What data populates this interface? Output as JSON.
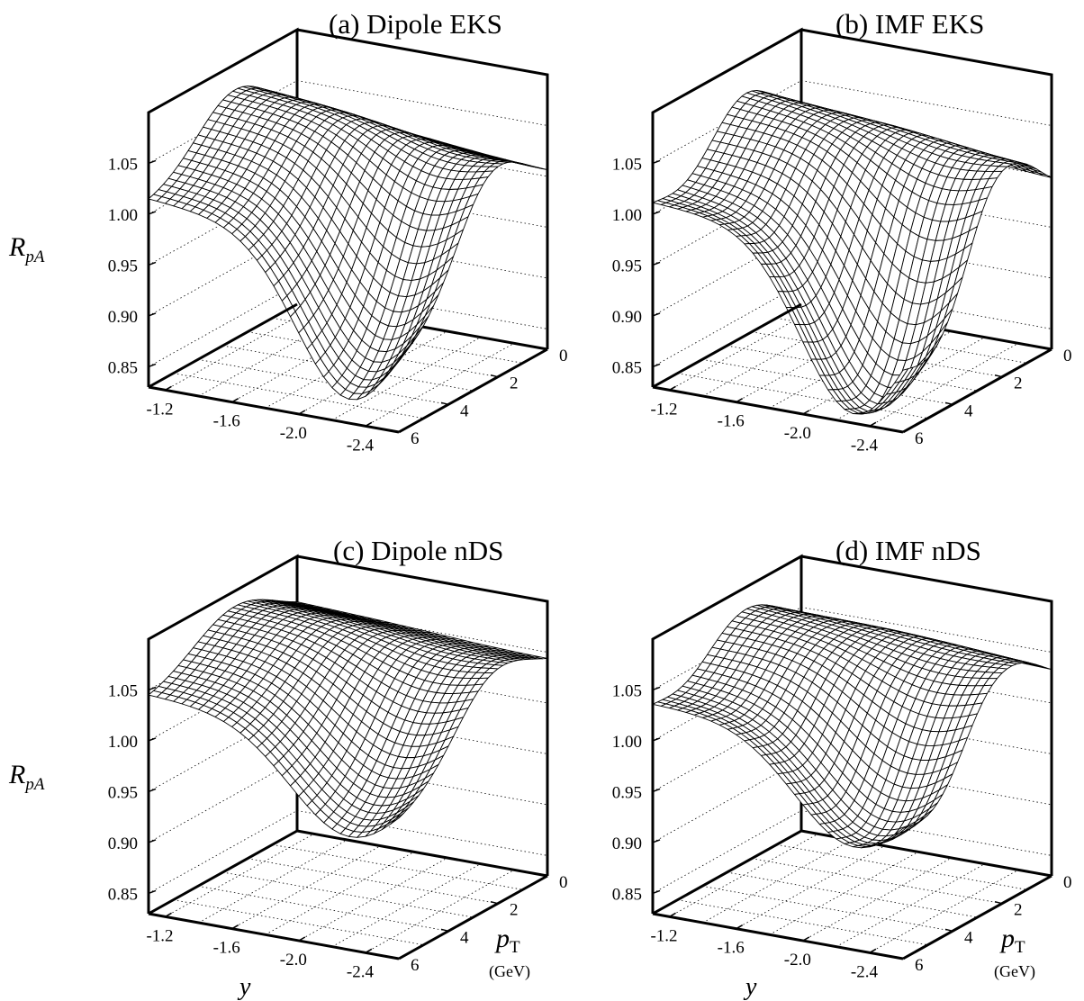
{
  "figure": {
    "zlabel_main": "R",
    "zlabel_sub": "pA",
    "xlabel": "y",
    "ylabel_main": "p",
    "ylabel_sub": "T",
    "ylabel_unit": "(GeV)"
  },
  "chart_data": [
    {
      "type": "surface",
      "title": "(a) Dipole EKS",
      "x_ticks": [
        "-1.2",
        "-1.6",
        "-2.0",
        "-2.4"
      ],
      "y_ticks": [
        "0",
        "2",
        "4",
        "6"
      ],
      "z_ticks": [
        "0.85",
        "0.90",
        "0.95",
        "1.00",
        "1.05"
      ],
      "xlim": [
        -1.1,
        -2.6
      ],
      "ylim": [
        0,
        6
      ],
      "zlim": [
        0.83,
        1.1
      ],
      "surface": {
        "base": 1.01,
        "x_slope": 0.04,
        "peak": 0.065,
        "peak_pt": 2.5,
        "peak_width": 2.2,
        "drop": 0.15,
        "drop_x_center": -2.3,
        "drop_x_width": 0.45,
        "drop_pt_center": 5.5,
        "drop_pt_width": 2.2,
        "ripple": 0
      },
      "corner_values": {
        "y_-1.2_pT_0": 1.02,
        "y_-2.5_pT_6": 0.85
      }
    },
    {
      "type": "surface",
      "title": "(b) IMF EKS",
      "x_ticks": [
        "-1.2",
        "-1.6",
        "-2.0",
        "-2.4"
      ],
      "y_ticks": [
        "0",
        "2",
        "4",
        "6"
      ],
      "z_ticks": [
        "0.85",
        "0.90",
        "0.95",
        "1.00",
        "1.05"
      ],
      "xlim": [
        -1.1,
        -2.6
      ],
      "ylim": [
        0,
        6
      ],
      "zlim": [
        0.83,
        1.1
      ],
      "surface": {
        "base": 1.01,
        "x_slope": 0.04,
        "peak": 0.06,
        "peak_pt": 2.2,
        "peak_width": 1.6,
        "drop": 0.16,
        "drop_x_center": -2.3,
        "drop_x_width": 0.45,
        "drop_pt_center": 5.3,
        "drop_pt_width": 1.6,
        "ripple": 0.008
      },
      "corner_values": {
        "y_-1.2_pT_0": 1.02,
        "y_-2.5_pT_6": 0.86
      }
    },
    {
      "type": "surface",
      "title": "(c) Dipole nDS",
      "x_ticks": [
        "-1.2",
        "-1.6",
        "-2.0",
        "-2.4"
      ],
      "y_ticks": [
        "0",
        "2",
        "4",
        "6"
      ],
      "z_ticks": [
        "0.85",
        "0.90",
        "0.95",
        "1.00",
        "1.05"
      ],
      "xlim": [
        -1.1,
        -2.6
      ],
      "ylim": [
        0,
        6
      ],
      "zlim": [
        0.83,
        1.1
      ],
      "surface": {
        "base": 1.04,
        "x_slope": 0.02,
        "peak": 0.045,
        "peak_pt": 2.5,
        "peak_width": 2.4,
        "drop": 0.1,
        "drop_x_center": -2.3,
        "drop_x_width": 0.5,
        "drop_pt_center": 5.5,
        "drop_pt_width": 2.4,
        "ripple": 0
      },
      "corner_values": {
        "y_-1.2_pT_0": 1.05,
        "y_-2.5_pT_6": 0.91
      }
    },
    {
      "type": "surface",
      "title": "(d) IMF nDS",
      "x_ticks": [
        "-1.2",
        "-1.6",
        "-2.0",
        "-2.4"
      ],
      "y_ticks": [
        "0",
        "2",
        "4",
        "6"
      ],
      "z_ticks": [
        "0.85",
        "0.90",
        "0.95",
        "1.00",
        "1.05"
      ],
      "xlim": [
        -1.1,
        -2.6
      ],
      "ylim": [
        0,
        6
      ],
      "zlim": [
        0.83,
        1.1
      ],
      "surface": {
        "base": 1.035,
        "x_slope": 0.02,
        "peak": 0.045,
        "peak_pt": 2.2,
        "peak_width": 1.7,
        "drop": 0.1,
        "drop_x_center": -2.3,
        "drop_x_width": 0.5,
        "drop_pt_center": 5.3,
        "drop_pt_width": 1.7,
        "ripple": 0.006
      },
      "corner_values": {
        "y_-1.2_pT_0": 1.04,
        "y_-2.5_pT_6": 0.92
      }
    }
  ]
}
